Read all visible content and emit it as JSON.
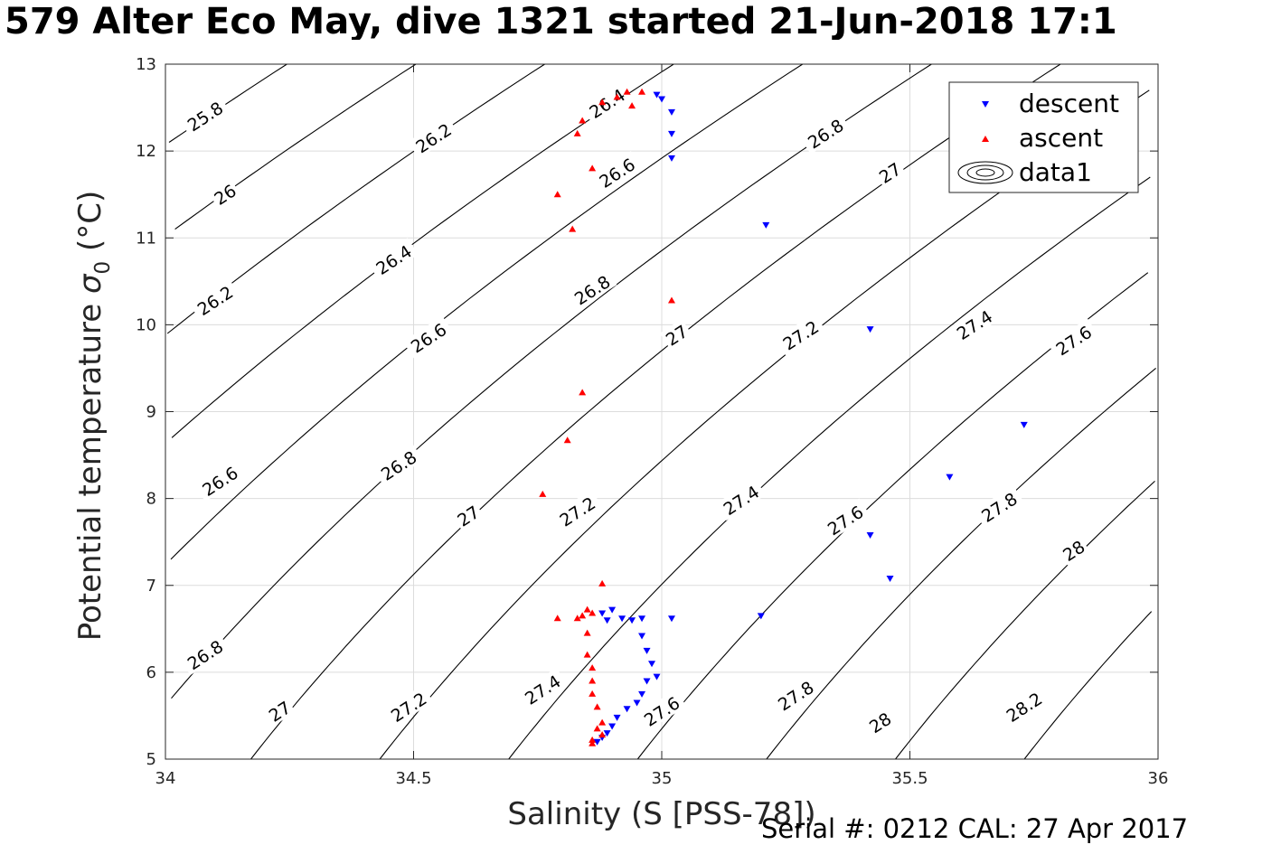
{
  "title": "579 Alter Eco May, dive 1321 started 21-Jun-2018 17:1",
  "footer": "Serial #: 0212  CAL: 27 Apr 2017",
  "chart_data": {
    "type": "scatter",
    "xlabel": "Salinity (S [PSS-78])",
    "ylabel_main": "Potential temperature ",
    "ylabel_sigma": "σ",
    "ylabel_sub": "0",
    "ylabel_unit": " (°C)",
    "xlim": [
      34,
      36
    ],
    "ylim": [
      5,
      13
    ],
    "xticks": [
      34,
      34.5,
      35,
      35.5,
      36
    ],
    "xtick_labels": [
      "34",
      "34.5",
      "35",
      "35.5",
      "36"
    ],
    "yticks": [
      5,
      6,
      7,
      8,
      9,
      10,
      11,
      12,
      13
    ],
    "ytick_labels": [
      "5",
      "6",
      "7",
      "8",
      "9",
      "10",
      "11",
      "12",
      "13"
    ],
    "grid": true,
    "legend_position": "top-right",
    "legend": [
      "descent",
      "ascent",
      "data1"
    ],
    "colors": {
      "descent": "#0000ff",
      "ascent": "#ff0000",
      "contour": "#000000",
      "grid": "#dcdcdc"
    },
    "contour_levels": [
      25.8,
      26.0,
      26.2,
      26.4,
      26.6,
      26.8,
      27.0,
      27.2,
      27.4,
      27.6,
      27.8,
      28.0,
      28.2
    ],
    "contour_labels": [
      {
        "text": "25.8",
        "x": 34.08,
        "y": 12.4
      },
      {
        "text": "26",
        "x": 34.12,
        "y": 11.5
      },
      {
        "text": "26.2",
        "x": 34.1,
        "y": 10.28
      },
      {
        "text": "26.4",
        "x": 34.46,
        "y": 10.75
      },
      {
        "text": "26.2",
        "x": 34.54,
        "y": 12.15
      },
      {
        "text": "26.6",
        "x": 34.11,
        "y": 8.2
      },
      {
        "text": "26.6",
        "x": 34.53,
        "y": 9.85
      },
      {
        "text": "26.8",
        "x": 34.08,
        "y": 6.2
      },
      {
        "text": "26.8",
        "x": 34.47,
        "y": 8.38
      },
      {
        "text": "26.8",
        "x": 34.86,
        "y": 10.4
      },
      {
        "text": "26.4",
        "x": 34.89,
        "y": 12.55
      },
      {
        "text": "26.6",
        "x": 34.91,
        "y": 11.75
      },
      {
        "text": "26.8",
        "x": 35.33,
        "y": 12.2
      },
      {
        "text": "27",
        "x": 34.23,
        "y": 5.55
      },
      {
        "text": "27",
        "x": 34.61,
        "y": 7.8
      },
      {
        "text": "27",
        "x": 35.03,
        "y": 9.88
      },
      {
        "text": "27",
        "x": 35.46,
        "y": 11.75
      },
      {
        "text": "27.2",
        "x": 34.49,
        "y": 5.6
      },
      {
        "text": "27.2",
        "x": 34.83,
        "y": 7.85
      },
      {
        "text": "27.2",
        "x": 35.28,
        "y": 9.88
      },
      {
        "text": "27.4",
        "x": 34.76,
        "y": 5.8
      },
      {
        "text": "27.4",
        "x": 35.16,
        "y": 7.98
      },
      {
        "text": "27.4",
        "x": 35.63,
        "y": 10.0
      },
      {
        "text": "27.6",
        "x": 35.0,
        "y": 5.55
      },
      {
        "text": "27.6",
        "x": 35.37,
        "y": 7.75
      },
      {
        "text": "27.6",
        "x": 35.83,
        "y": 9.82
      },
      {
        "text": "27.8",
        "x": 35.27,
        "y": 5.73
      },
      {
        "text": "27.8",
        "x": 35.68,
        "y": 7.9
      },
      {
        "text": "28",
        "x": 35.44,
        "y": 5.42
      },
      {
        "text": "28",
        "x": 35.83,
        "y": 7.4
      },
      {
        "text": "28.2",
        "x": 35.73,
        "y": 5.6
      }
    ],
    "series": [
      {
        "name": "descent",
        "marker": "triangle-down",
        "color": "#0000ff",
        "points": [
          [
            34.99,
            12.65
          ],
          [
            35.0,
            12.6
          ],
          [
            35.02,
            12.45
          ],
          [
            35.02,
            12.2
          ],
          [
            35.02,
            11.92
          ],
          [
            35.21,
            11.15
          ],
          [
            35.42,
            9.95
          ],
          [
            35.73,
            8.85
          ],
          [
            35.58,
            8.25
          ],
          [
            35.42,
            7.58
          ],
          [
            35.46,
            7.08
          ],
          [
            35.2,
            6.65
          ],
          [
            35.02,
            6.62
          ],
          [
            34.96,
            6.62
          ],
          [
            34.92,
            6.62
          ],
          [
            34.9,
            6.72
          ],
          [
            34.88,
            6.68
          ],
          [
            34.89,
            6.6
          ],
          [
            34.94,
            6.6
          ],
          [
            34.96,
            6.42
          ],
          [
            34.97,
            6.25
          ],
          [
            34.98,
            6.1
          ],
          [
            34.99,
            5.95
          ],
          [
            34.97,
            5.9
          ],
          [
            34.96,
            5.75
          ],
          [
            34.95,
            5.65
          ],
          [
            34.93,
            5.58
          ],
          [
            34.91,
            5.48
          ],
          [
            34.9,
            5.38
          ],
          [
            34.89,
            5.3
          ],
          [
            34.88,
            5.25
          ],
          [
            34.87,
            5.2
          ]
        ]
      },
      {
        "name": "ascent",
        "marker": "triangle-up",
        "color": "#ff0000",
        "points": [
          [
            34.96,
            12.68
          ],
          [
            34.93,
            12.68
          ],
          [
            34.91,
            12.62
          ],
          [
            34.88,
            12.56
          ],
          [
            34.94,
            12.52
          ],
          [
            34.84,
            12.35
          ],
          [
            34.83,
            12.2
          ],
          [
            34.86,
            11.8
          ],
          [
            34.79,
            11.5
          ],
          [
            34.82,
            11.1
          ],
          [
            35.02,
            10.28
          ],
          [
            34.84,
            9.22
          ],
          [
            34.81,
            8.67
          ],
          [
            34.76,
            8.05
          ],
          [
            34.88,
            7.02
          ],
          [
            34.85,
            6.72
          ],
          [
            34.86,
            6.68
          ],
          [
            34.84,
            6.65
          ],
          [
            34.83,
            6.62
          ],
          [
            34.79,
            6.62
          ],
          [
            34.85,
            6.45
          ],
          [
            34.85,
            6.2
          ],
          [
            34.86,
            6.05
          ],
          [
            34.86,
            5.9
          ],
          [
            34.86,
            5.75
          ],
          [
            34.87,
            5.6
          ],
          [
            34.88,
            5.42
          ],
          [
            34.87,
            5.35
          ],
          [
            34.88,
            5.28
          ],
          [
            34.86,
            5.22
          ],
          [
            34.86,
            5.18
          ]
        ]
      }
    ]
  }
}
